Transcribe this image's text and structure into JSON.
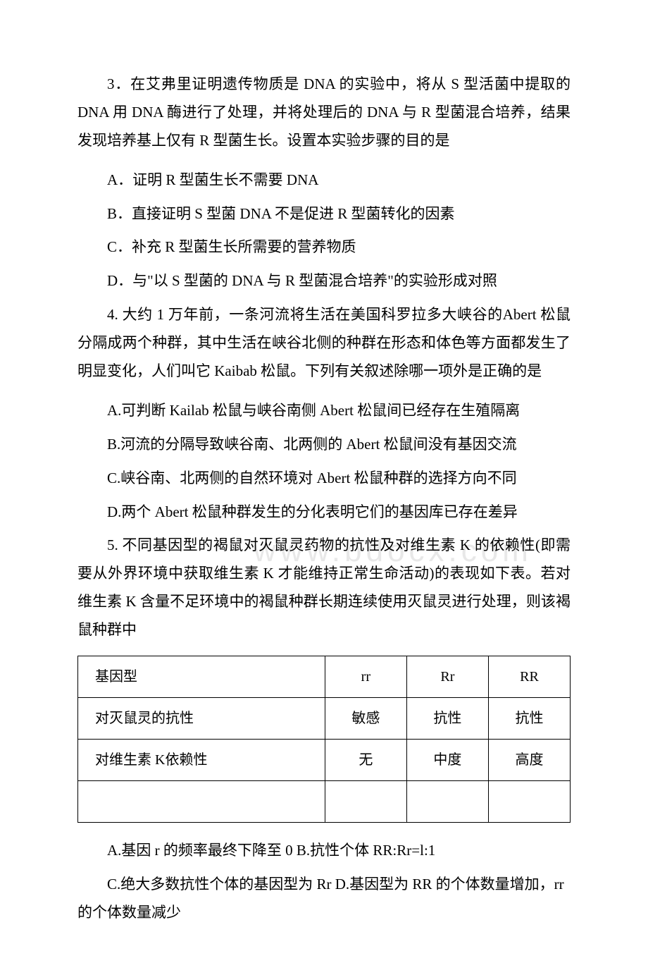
{
  "q3": {
    "stem": "3．在艾弗里证明遗传物质是 DNA 的实验中，将从 S 型活菌中提取的 DNA 用 DNA 酶进行了处理，并将处理后的 DNA 与 R 型菌混合培养，结果发现培养基上仅有 R 型菌生长。设置本实验步骤的目的是",
    "options": {
      "A": "A．证明 R 型菌生长不需要 DNA",
      "B": "B．直接证明 S 型菌 DNA 不是促进 R 型菌转化的因素",
      "C": "C．补充 R 型菌生长所需要的营养物质",
      "D": "D．与\"以 S 型菌的 DNA 与 R 型菌混合培养\"的实验形成对照"
    }
  },
  "q4": {
    "stem": "4. 大约 1 万年前，一条河流将生活在美国科罗拉多大峡谷的Abert 松鼠分隔成两个种群，其中生活在峡谷北侧的种群在形态和体色等方面都发生了明显变化，人们叫它 Kaibab 松鼠。下列有关叙述除哪一项外是正确的是",
    "options": {
      "A": "A.可判断 Kailab 松鼠与峡谷南侧 Abert 松鼠间已经存在生殖隔离",
      "B": "B.河流的分隔导致峡谷南、北两侧的 Abert 松鼠间没有基因交流",
      "C": "C.峡谷南、北两侧的自然环境对 Abert 松鼠种群的选择方向不同",
      "D": "D.两个 Abert 松鼠种群发生的分化表明它们的基因库已存在差异"
    }
  },
  "q5": {
    "stem": "5. 不同基因型的褐鼠对灭鼠灵药物的抗性及对维生素 K 的依赖性(即需要从外界环境中获取维生素 K 才能维持正常生命活动)的表现如下表。若对维生素 K 含量不足环境中的褐鼠种群长期连续使用灭鼠灵进行处理，则该褐鼠种群中",
    "table": {
      "columns": [
        "基因型",
        "rr",
        "Rr",
        "RR"
      ],
      "rows": [
        [
          "对灭鼠灵的抗性",
          "敏感",
          "抗性",
          "抗性"
        ],
        [
          "对维生素 K依赖性",
          "无",
          "中度",
          "高度"
        ]
      ]
    },
    "options": {
      "line1": "A.基因 r 的频率最终下降至 0 B.抗性个体 RR:Rr=l:1",
      "line2": "C.绝大多数抗性个体的基因型为 Rr  D.基因型为 RR 的个体数量增加，rr 的个体数量减少"
    }
  },
  "watermark": "www.bdocx.com"
}
